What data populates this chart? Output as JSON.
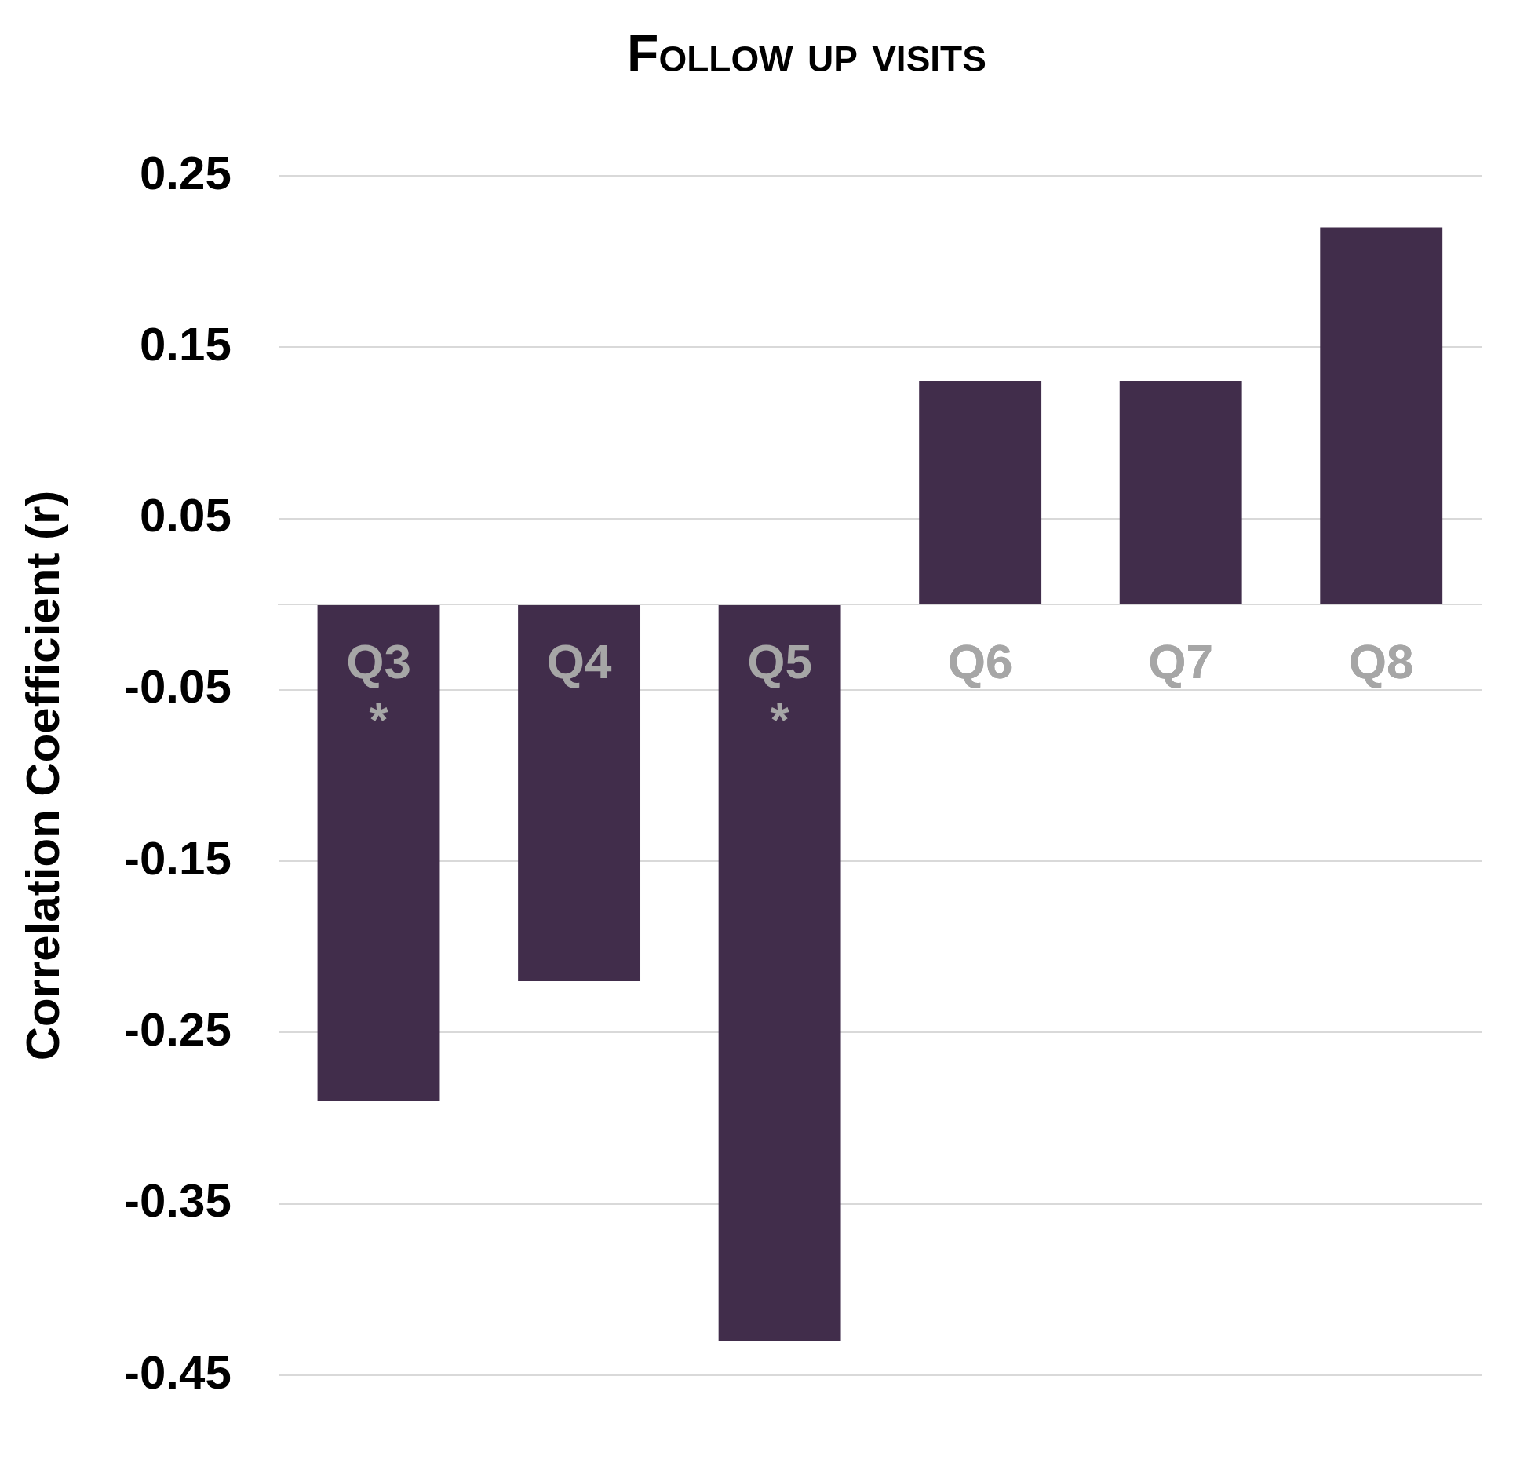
{
  "chart_data": {
    "type": "bar",
    "title": "Follow up visits",
    "ylabel": "Correlation Coefficient (r)",
    "categories": [
      "Q3\n*",
      "Q4",
      "Q5\n*",
      "Q6",
      "Q7",
      "Q8"
    ],
    "values": [
      -0.29,
      -0.22,
      -0.43,
      0.13,
      0.13,
      0.22
    ],
    "color": "#412d4b",
    "ylim": [
      -0.45,
      0.25
    ],
    "yticks": [
      -0.45,
      -0.35,
      -0.25,
      -0.15,
      -0.05,
      0.05,
      0.15,
      0.25
    ],
    "grid": "y"
  }
}
